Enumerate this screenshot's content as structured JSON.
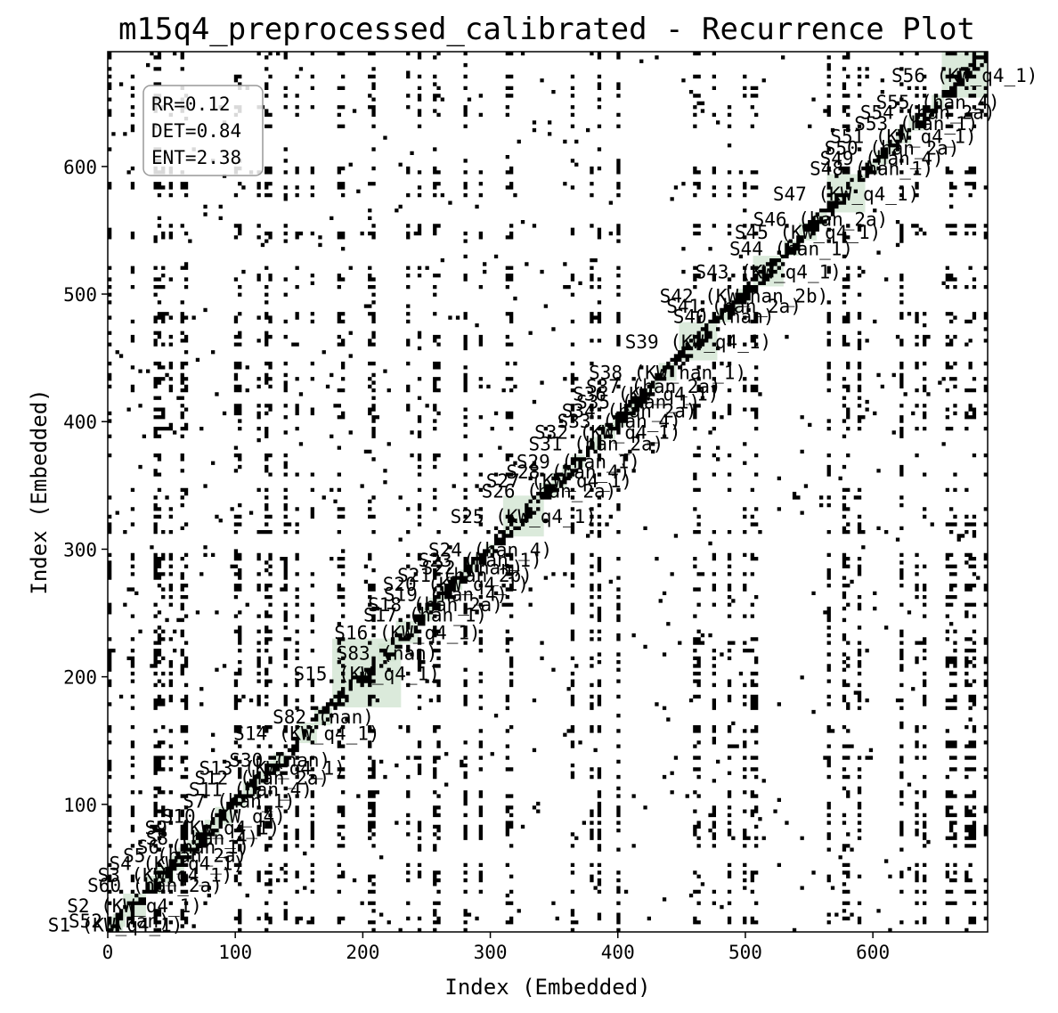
{
  "chart_data": {
    "type": "heatmap",
    "subtype": "recurrence-plot",
    "title": "m15q4_preprocessed_calibrated - Recurrence Plot",
    "xlabel": "Index (Embedded)",
    "ylabel": "Index (Embedded)",
    "xlim": [
      0,
      690
    ],
    "ylim": [
      0,
      690
    ],
    "x_ticks": [
      0,
      100,
      200,
      300,
      400,
      500,
      600
    ],
    "y_ticks": [
      100,
      200,
      300,
      400,
      500,
      600
    ],
    "grid": false,
    "stats": [
      "RR=0.12",
      "DET=0.84",
      "ENT=2.38"
    ],
    "stats_placement": "top-left",
    "recurrence_color": "#000000",
    "segment_fill_color": "#cfe3cf",
    "segments": [
      {
        "label": "S1 (KW_q4_1)",
        "start": 0,
        "end": 12
      },
      {
        "label": "S52 (nan)",
        "start": 4,
        "end": 14
      },
      {
        "label": "S2 (KW_q4_1)",
        "start": 12,
        "end": 30
      },
      {
        "label": "S60 (han_2a)",
        "start": 30,
        "end": 44
      },
      {
        "label": "S3 (KW_q4_1)",
        "start": 38,
        "end": 52
      },
      {
        "label": "S4 (KW_q4_1)",
        "start": 48,
        "end": 60
      },
      {
        "label": "S5 (han_2a)",
        "start": 55,
        "end": 66
      },
      {
        "label": "S6 (han_1)",
        "start": 62,
        "end": 72
      },
      {
        "label": "S8 (han_4)",
        "start": 68,
        "end": 80
      },
      {
        "label": "S9 (KW_q4_1)",
        "start": 76,
        "end": 88
      },
      {
        "label": "S10 (KW_q4)",
        "start": 84,
        "end": 98
      },
      {
        "label": "S7 (han_1)",
        "start": 98,
        "end": 108
      },
      {
        "label": "S11 (han_4)",
        "start": 106,
        "end": 118
      },
      {
        "label": "S12 (han_2a)",
        "start": 116,
        "end": 126
      },
      {
        "label": "S13 (KW_q4_1)",
        "start": 124,
        "end": 134
      },
      {
        "label": "S30 (nan)",
        "start": 130,
        "end": 140
      },
      {
        "label": "S14 (KW_q4_1)",
        "start": 148,
        "end": 164
      },
      {
        "label": "S82 (nan)",
        "start": 162,
        "end": 176
      },
      {
        "label": "S15 (KW_q4_1)",
        "start": 176,
        "end": 230
      },
      {
        "label": "S83 (nan)",
        "start": 212,
        "end": 226
      },
      {
        "label": "S16 (KW_q4_1)",
        "start": 226,
        "end": 244
      },
      {
        "label": "S17 (han_1)",
        "start": 244,
        "end": 254
      },
      {
        "label": "S18 (han_2a)",
        "start": 252,
        "end": 262
      },
      {
        "label": "S19 (han_4)",
        "start": 260,
        "end": 270
      },
      {
        "label": "S20 (KW_q4_1)",
        "start": 268,
        "end": 278
      },
      {
        "label": "S21 (han_2b)",
        "start": 276,
        "end": 284
      },
      {
        "label": "S22 (nan)",
        "start": 282,
        "end": 290
      },
      {
        "label": "S23 (han_1)",
        "start": 288,
        "end": 296
      },
      {
        "label": "S24 (han_4)",
        "start": 296,
        "end": 304
      },
      {
        "label": "S25 (KW_q4_1)",
        "start": 310,
        "end": 342
      },
      {
        "label": "S26 (han_2a)",
        "start": 340,
        "end": 352
      },
      {
        "label": "S27 (KW_q4_1)",
        "start": 348,
        "end": 360
      },
      {
        "label": "S28 (han_4)",
        "start": 356,
        "end": 366
      },
      {
        "label": "S29 (han_1)",
        "start": 364,
        "end": 374
      },
      {
        "label": "S31 (han_2a)",
        "start": 378,
        "end": 388
      },
      {
        "label": "S32 (KW_q4_1)",
        "start": 386,
        "end": 398
      },
      {
        "label": "S33 (han_4)",
        "start": 396,
        "end": 406
      },
      {
        "label": "S34 (han_2a)",
        "start": 404,
        "end": 414
      },
      {
        "label": "S35 (han_1)",
        "start": 412,
        "end": 420
      },
      {
        "label": "S36 (KW_q4_1)",
        "start": 418,
        "end": 426
      },
      {
        "label": "S37 (han_2a)",
        "start": 424,
        "end": 432
      },
      {
        "label": "S38 (KW_han_1)",
        "start": 432,
        "end": 446
      },
      {
        "label": "S39 (KW_q4_1)",
        "start": 448,
        "end": 478
      },
      {
        "label": "S40 (nan)",
        "start": 478,
        "end": 488
      },
      {
        "label": "S41 (han_2a)",
        "start": 486,
        "end": 496
      },
      {
        "label": "S42 (KW_han_2b)",
        "start": 494,
        "end": 504
      },
      {
        "label": "S43 (KW_q4_1)",
        "start": 506,
        "end": 530
      },
      {
        "label": "S44 (han_1)",
        "start": 530,
        "end": 542
      },
      {
        "label": "S45 (KW_q4_1)",
        "start": 542,
        "end": 556
      },
      {
        "label": "S46 (han_2a)",
        "start": 554,
        "end": 564
      },
      {
        "label": "S47 (KW_q4_1)",
        "start": 564,
        "end": 594
      },
      {
        "label": "S48 (han_1)",
        "start": 594,
        "end": 604
      },
      {
        "label": "S49 (han_4)",
        "start": 602,
        "end": 612
      },
      {
        "label": "S50 (han_2a)",
        "start": 610,
        "end": 620
      },
      {
        "label": "S51 (KW_q4_1)",
        "start": 618,
        "end": 630
      },
      {
        "label": "S53 (han_1)",
        "start": 628,
        "end": 640
      },
      {
        "label": "S54 (han_2a)",
        "start": 638,
        "end": 648
      },
      {
        "label": "S55 (han_4)",
        "start": 646,
        "end": 656
      },
      {
        "label": "S56 (KW_q4_1)",
        "start": 654,
        "end": 690
      }
    ]
  }
}
